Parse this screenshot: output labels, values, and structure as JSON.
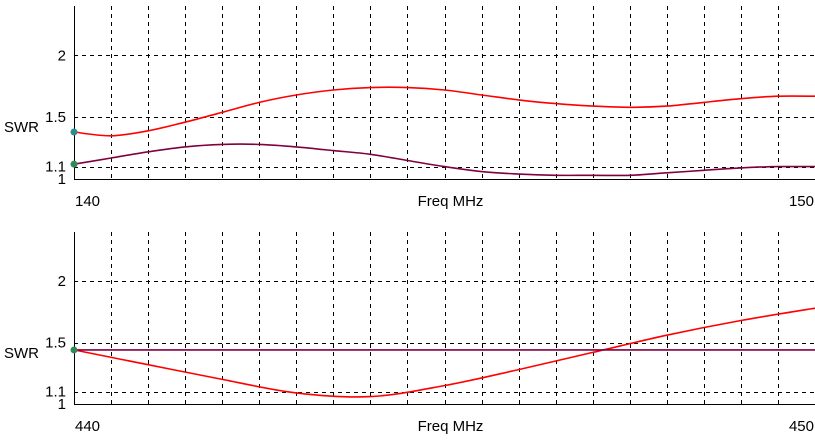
{
  "chart_data": [
    {
      "type": "line",
      "xlabel": "Freq MHz",
      "ylabel": "SWR",
      "xlim": [
        140,
        150
      ],
      "ylim": [
        1,
        2.4
      ],
      "x_tick_labels": [
        "140",
        "150"
      ],
      "y_ticks": [
        2,
        1.5,
        1.1,
        1
      ],
      "y_tick_labels": [
        "2",
        "1.5",
        "1.1",
        "1"
      ],
      "x_grid_lines": 19,
      "grid": true,
      "series": [
        {
          "color": "#ff0000",
          "x": [
            140,
            140.5,
            141,
            141.5,
            142,
            142.5,
            143,
            143.5,
            144,
            144.5,
            145,
            145.5,
            146,
            146.5,
            147,
            147.5,
            148,
            148.5,
            149,
            149.5,
            150
          ],
          "values": [
            1.38,
            1.35,
            1.39,
            1.46,
            1.54,
            1.62,
            1.68,
            1.72,
            1.74,
            1.74,
            1.72,
            1.68,
            1.64,
            1.61,
            1.59,
            1.58,
            1.59,
            1.62,
            1.65,
            1.67,
            1.67
          ]
        },
        {
          "color": "#800040",
          "x": [
            140,
            140.5,
            141,
            141.5,
            142,
            142.5,
            143,
            143.5,
            144,
            144.5,
            145,
            145.5,
            146,
            146.5,
            147,
            147.5,
            148,
            148.5,
            149,
            149.5,
            150
          ],
          "values": [
            1.12,
            1.17,
            1.22,
            1.26,
            1.28,
            1.28,
            1.26,
            1.23,
            1.2,
            1.15,
            1.1,
            1.06,
            1.04,
            1.03,
            1.03,
            1.03,
            1.05,
            1.07,
            1.09,
            1.1,
            1.1
          ]
        }
      ],
      "markers": [
        {
          "x": 140,
          "y": 1.38,
          "color": "#2e8b8b"
        },
        {
          "x": 140,
          "y": 1.12,
          "color": "#2e8b57"
        }
      ]
    },
    {
      "type": "line",
      "xlabel": "Freq MHz",
      "ylabel": "SWR",
      "xlim": [
        440,
        450
      ],
      "ylim": [
        1,
        2.4
      ],
      "x_tick_labels": [
        "440",
        "450"
      ],
      "y_ticks": [
        2,
        1.5,
        1.1,
        1
      ],
      "y_tick_labels": [
        "2",
        "1.5",
        "1.1",
        "1"
      ],
      "x_grid_lines": 19,
      "grid": true,
      "series": [
        {
          "color": "#ff0000",
          "x": [
            440,
            441,
            442,
            443,
            444,
            445,
            446,
            447,
            448,
            449,
            450
          ],
          "values": [
            1.44,
            1.32,
            1.2,
            1.09,
            1.06,
            1.15,
            1.28,
            1.42,
            1.56,
            1.68,
            1.78
          ]
        },
        {
          "color": "#800040",
          "x": [
            440,
            441,
            442,
            443,
            444,
            445,
            446,
            447,
            448,
            449,
            450
          ],
          "values": [
            1.44,
            1.44,
            1.44,
            1.44,
            1.44,
            1.44,
            1.44,
            1.44,
            1.44,
            1.44,
            1.44
          ]
        }
      ],
      "markers": [
        {
          "x": 440,
          "y": 1.44,
          "color": "#2e8b57"
        }
      ]
    }
  ]
}
